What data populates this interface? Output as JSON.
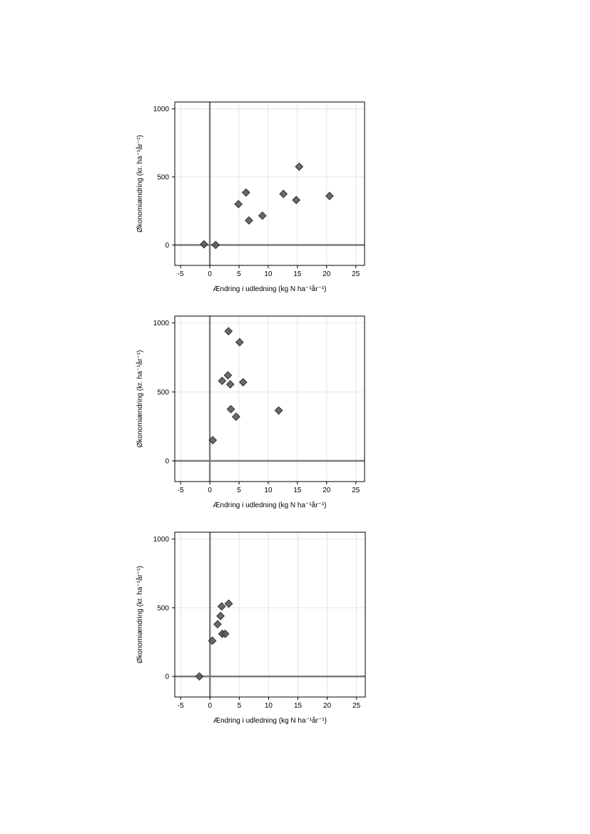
{
  "chart_data": [
    {
      "type": "scatter",
      "title": "",
      "xlabel": "Ændring i udledning (kg N ha⁻¹år⁻¹)",
      "ylabel": "Økonomiændring (kr. ha⁻¹år⁻¹)",
      "xlim": [
        -6,
        26.5
      ],
      "ylim": [
        -150,
        1050
      ],
      "xticks": [
        -5,
        0,
        5,
        10,
        15,
        20,
        25
      ],
      "yticks": [
        0,
        500,
        1000
      ],
      "grid": true,
      "reference_lines": {
        "x": 0,
        "y": 0
      },
      "marker": "diamond",
      "marker_color": "#5a5a5a",
      "series": [
        {
          "x": [
            -1,
            1,
            4.9,
            6.2,
            6.7,
            9,
            12.6,
            14.8,
            15.3,
            20.5
          ],
          "y": [
            5,
            0,
            300,
            385,
            180,
            215,
            375,
            330,
            575,
            360
          ]
        }
      ]
    },
    {
      "type": "scatter",
      "title": "",
      "xlabel": "Ændring i udledning (kg N ha⁻¹år⁻¹)",
      "ylabel": "Økonomiændring (kr. ha⁻¹år⁻¹)",
      "xlim": [
        -6,
        26.5
      ],
      "ylim": [
        -150,
        1050
      ],
      "xticks": [
        -5,
        0,
        5,
        10,
        15,
        20,
        25
      ],
      "yticks": [
        0,
        500,
        1000
      ],
      "grid": true,
      "reference_lines": {
        "x": 0,
        "y": 0
      },
      "marker": "diamond",
      "marker_color": "#5a5a5a",
      "series": [
        {
          "x": [
            0.5,
            2.1,
            3.1,
            3.2,
            3.5,
            3.6,
            4.5,
            5.1,
            5.7,
            11.8
          ],
          "y": [
            150,
            580,
            620,
            940,
            555,
            375,
            320,
            860,
            570,
            365
          ]
        }
      ]
    },
    {
      "type": "scatter",
      "title": "",
      "xlabel": "Ændring i udledning (kg N ha⁻¹år⁻¹)",
      "ylabel": "Økonomiændring (kr. ha⁻¹år⁻¹)",
      "xlim": [
        -6,
        26.5
      ],
      "ylim": [
        -150,
        1050
      ],
      "xticks": [
        -5,
        0,
        5,
        10,
        15,
        20,
        25
      ],
      "yticks": [
        0,
        500,
        1000
      ],
      "grid": true,
      "reference_lines": {
        "x": 0,
        "y": 0
      },
      "marker": "diamond",
      "marker_color": "#5a5a5a",
      "series": [
        {
          "x": [
            -1.8,
            0.4,
            1.3,
            1.8,
            2.0,
            2.1,
            2.6,
            3.2
          ],
          "y": [
            0,
            260,
            380,
            440,
            510,
            310,
            310,
            530
          ]
        }
      ]
    }
  ]
}
